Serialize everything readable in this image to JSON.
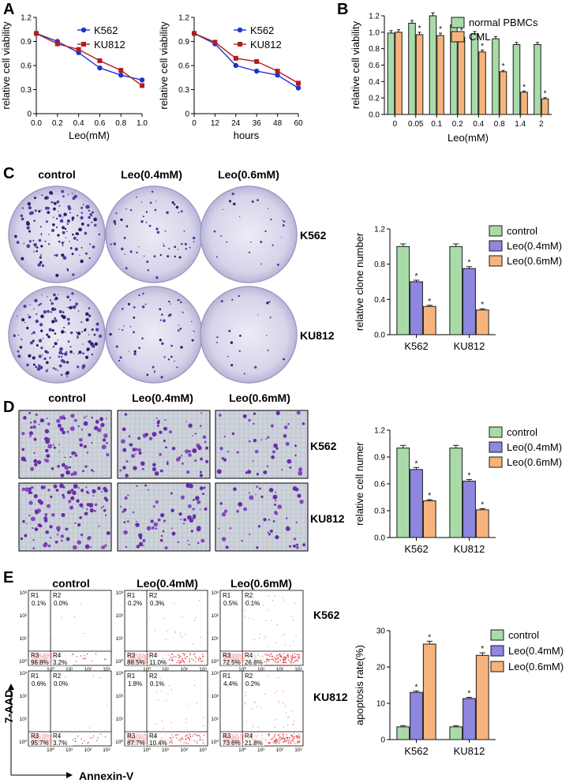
{
  "panel_letters": [
    "A",
    "B",
    "C",
    "D",
    "E"
  ],
  "colors": {
    "k562": "#2233cc",
    "ku812": "#b01e1e",
    "green": "#a8dba8",
    "blue": "#8d87e0",
    "orange": "#f6b47c",
    "edge": "#1a1a1a",
    "flow": "#e23a3a"
  },
  "col_headers": {
    "c": [
      "control",
      "Leo(0.4mM)",
      "Leo(0.6mM)"
    ],
    "d": [
      "control",
      "Leo(0.4mM)",
      "Leo(0.6mM)"
    ],
    "e": [
      "control",
      "Leo(0.4mM)",
      "Leo(0.6mM)"
    ]
  },
  "row_labels": {
    "c": [
      "K562",
      "KU812"
    ],
    "d": [
      "K562",
      "KU812"
    ],
    "e": [
      "K562",
      "KU812"
    ]
  },
  "flow_axes": {
    "y": "7-AAD",
    "x": "Annexin-V"
  },
  "quadrant_names": [
    "R1",
    "R2",
    "R3",
    "R4"
  ],
  "flow_quadrants": [
    [
      "0.1%",
      "0.0%",
      "96.8%",
      "3.2%"
    ],
    [
      "0.2%",
      "0.3%",
      "88.5%",
      "11.0%"
    ],
    [
      "0.5%",
      "0.1%",
      "72.5%",
      "26.8%"
    ],
    [
      "0.6%",
      "0.0%",
      "95.7%",
      "3.7%"
    ],
    [
      "1.8%",
      "0.1%",
      "87.7%",
      "10.4%"
    ],
    [
      "4.4%",
      "0.2%",
      "73.6%",
      "21.8%"
    ]
  ],
  "flow_tick_labels": {
    "y": [
      "10³",
      "10²",
      "10¹",
      "10⁰"
    ],
    "x": [
      "10⁰",
      "10¹",
      "10²",
      "10³"
    ]
  },
  "sig_mark": "*",
  "chart_data": [
    {
      "type": "line",
      "panel": "A",
      "xlabel": "Leo(mM)",
      "ylabel": "relative cell viability",
      "x": [
        0,
        0.2,
        0.4,
        0.6,
        0.8,
        1.0
      ],
      "xticks": [
        "0.0",
        "0.2",
        "0.4",
        "0.6",
        "0.8",
        "1.0"
      ],
      "ylim": [
        0,
        1.2
      ],
      "yticks": [
        "0",
        "0.3",
        "0.6",
        "0.9",
        "1.2"
      ],
      "legend": "top-right",
      "series": [
        {
          "name": "K562",
          "values": [
            1.0,
            0.9,
            0.76,
            0.57,
            0.48,
            0.42
          ]
        },
        {
          "name": "KU812",
          "values": [
            1.0,
            0.87,
            0.8,
            0.66,
            0.54,
            0.35
          ]
        }
      ]
    },
    {
      "type": "line",
      "panel": "A",
      "xlabel": "hours",
      "ylabel": "relative cell viability",
      "x": [
        0,
        12,
        24,
        36,
        48,
        60
      ],
      "xticks": [
        "0",
        "12",
        "24",
        "36",
        "48",
        "60"
      ],
      "ylim": [
        0,
        1.2
      ],
      "yticks": [
        "0",
        "0.3",
        "0.6",
        "0.9",
        "1.2"
      ],
      "legend": "top-right",
      "series": [
        {
          "name": "K562",
          "values": [
            1.0,
            0.87,
            0.6,
            0.53,
            0.48,
            0.32
          ]
        },
        {
          "name": "KU812",
          "values": [
            1.0,
            0.89,
            0.69,
            0.65,
            0.53,
            0.38
          ]
        }
      ]
    },
    {
      "type": "bar",
      "panel": "B",
      "xlabel": "Leo(mM)",
      "ylabel": "relative cell viability",
      "categories": [
        "0",
        "0.05",
        "0.1",
        "0.2",
        "0.4",
        "0.8",
        "1.4",
        "2"
      ],
      "ylim": [
        0,
        1.2
      ],
      "yticks": [
        "0.0",
        "0.2",
        "0.4",
        "0.6",
        "0.8",
        "1.0",
        "1.2"
      ],
      "legend": "top-right",
      "series": [
        {
          "name": "normal PBMCs",
          "values": [
            0.99,
            1.11,
            1.2,
            1.09,
            0.98,
            0.92,
            0.85,
            0.85
          ]
        },
        {
          "name": "CML",
          "values": [
            1.0,
            0.97,
            0.96,
            0.94,
            0.76,
            0.52,
            0.27,
            0.19
          ]
        }
      ],
      "significant": [
        [
          false,
          false,
          false,
          false,
          false,
          false,
          false,
          false
        ],
        [
          false,
          true,
          true,
          true,
          true,
          true,
          true,
          true
        ]
      ]
    },
    {
      "type": "bar",
      "panel": "C",
      "xlabel": "",
      "ylabel": "relative clone number",
      "categories": [
        "K562",
        "KU812"
      ],
      "ylim": [
        0,
        1.2
      ],
      "yticks": [
        "0.0",
        "0.4",
        "0.8",
        "1.2"
      ],
      "legend": "top-right",
      "series": [
        {
          "name": "control",
          "values": [
            1.0,
            1.0
          ]
        },
        {
          "name": "Leo(0.4mM)",
          "values": [
            0.6,
            0.75
          ]
        },
        {
          "name": "Leo(0.6mM)",
          "values": [
            0.32,
            0.28
          ]
        }
      ],
      "significant": [
        [
          false,
          false
        ],
        [
          true,
          true
        ],
        [
          true,
          true
        ]
      ]
    },
    {
      "type": "bar",
      "panel": "D",
      "xlabel": "",
      "ylabel": "relative cell numer",
      "categories": [
        "K562",
        "KU812"
      ],
      "ylim": [
        0,
        1.2
      ],
      "yticks": [
        "0.0",
        "0.3",
        "0.6",
        "0.9",
        "1.2"
      ],
      "legend": "top-right",
      "series": [
        {
          "name": "control",
          "values": [
            1.0,
            1.0
          ]
        },
        {
          "name": "Leo(0.4mM)",
          "values": [
            0.76,
            0.63
          ]
        },
        {
          "name": "Leo(0.6mM)",
          "values": [
            0.41,
            0.31
          ]
        }
      ],
      "significant": [
        [
          false,
          false
        ],
        [
          true,
          true
        ],
        [
          true,
          true
        ]
      ]
    },
    {
      "type": "bar",
      "panel": "E",
      "xlabel": "",
      "ylabel": "apoptosis rate(%)",
      "categories": [
        "K562",
        "KU812"
      ],
      "ylim": [
        0,
        30
      ],
      "yticks": [
        "0",
        "10",
        "20",
        "30"
      ],
      "legend": "top-right",
      "series": [
        {
          "name": "control",
          "values": [
            3.5,
            3.5
          ]
        },
        {
          "name": "Leo(0.4mM)",
          "values": [
            13,
            11.3
          ]
        },
        {
          "name": "Leo(0.6mM)",
          "values": [
            26.3,
            23.2
          ]
        }
      ],
      "significant": [
        [
          false,
          false
        ],
        [
          true,
          true
        ],
        [
          true,
          true
        ]
      ]
    }
  ]
}
